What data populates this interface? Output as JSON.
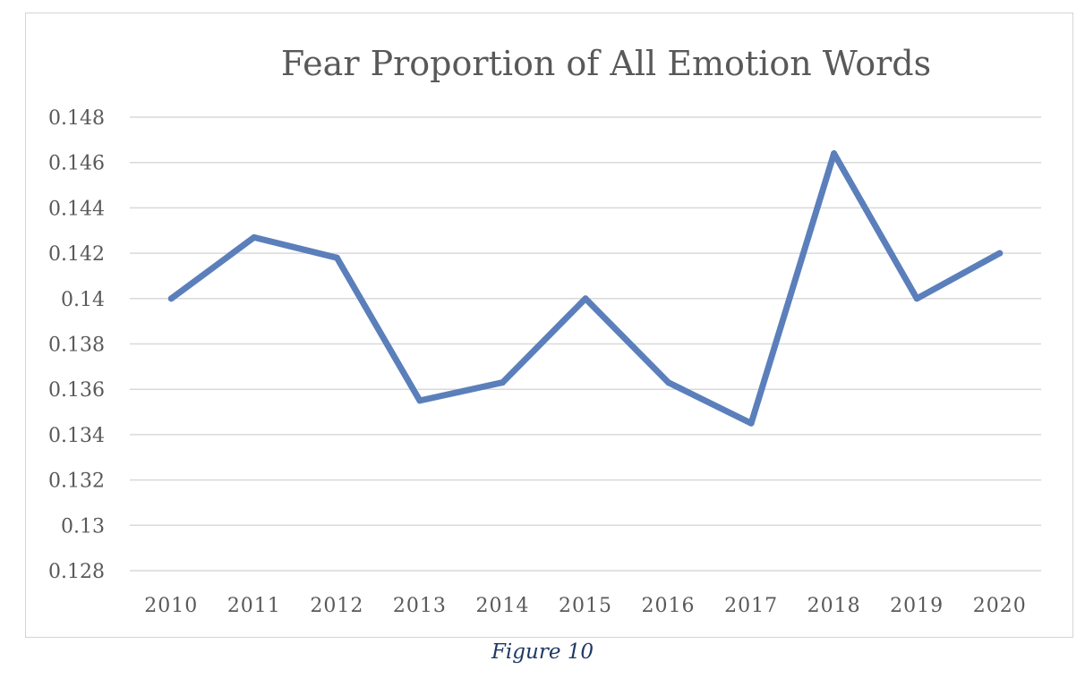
{
  "chart_data": {
    "type": "line",
    "title": "Fear Proportion of All Emotion Words",
    "xlabel": "",
    "ylabel": "",
    "categories": [
      "2010",
      "2011",
      "2012",
      "2013",
      "2014",
      "2015",
      "2016",
      "2017",
      "2018",
      "2019",
      "2020"
    ],
    "series": [
      {
        "values": [
          0.14,
          0.1427,
          0.1418,
          0.1355,
          0.1363,
          0.14,
          0.1363,
          0.1345,
          0.1464,
          0.14,
          0.142
        ]
      }
    ],
    "y_ticks": [
      "0.128",
      "0.13",
      "0.132",
      "0.134",
      "0.136",
      "0.138",
      "0.14",
      "0.142",
      "0.144",
      "0.146",
      "0.148"
    ],
    "ylim": [
      0.128,
      0.148
    ],
    "grid": true,
    "legend": "none",
    "line_color": "#5b7fbb",
    "grid_color": "#d9d9d9"
  },
  "caption": "Figure 10"
}
